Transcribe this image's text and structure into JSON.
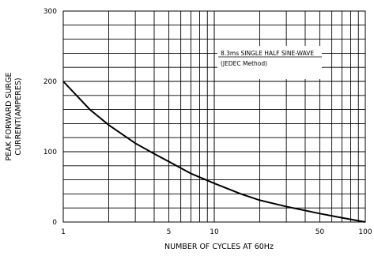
{
  "chart_data": {
    "type": "line",
    "title": "",
    "xlabel": "NUMBER OF CYCLES AT 60Hz",
    "ylabel_line1": "PEAK FORWARD SURGE",
    "ylabel_line2": "CURRENT(AMPERES)",
    "x_scale": "log",
    "xlim": [
      1,
      100
    ],
    "ylim": [
      0,
      300
    ],
    "grid": true,
    "x_ticks": [
      1,
      5,
      10,
      50,
      100
    ],
    "x_tick_labels": [
      "1",
      "5",
      "10",
      "50",
      "100"
    ],
    "y_ticks": [
      0,
      100,
      200,
      300
    ],
    "y_tick_labels": [
      "0",
      "100",
      "200",
      "300"
    ],
    "series": [
      {
        "x": [
          1,
          1.5,
          2,
          3,
          4,
          5,
          7,
          10,
          15,
          20,
          30,
          50,
          70,
          100
        ],
        "y": [
          200,
          160,
          138,
          112,
          97,
          86,
          69,
          55,
          40,
          31,
          22,
          12,
          6,
          0
        ]
      }
    ],
    "annotations": [
      "8.3ms SINGLE HALF SINE-WAVE",
      "(JEDEC Method)"
    ]
  }
}
